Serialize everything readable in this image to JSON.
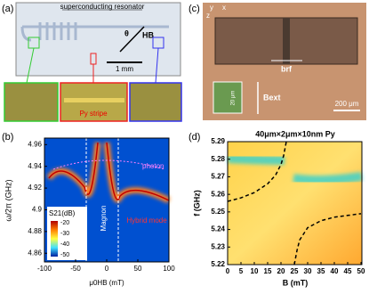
{
  "panel_labels": [
    "(a)",
    "(b)",
    "(c)",
    "(d)"
  ],
  "panel_a": {
    "resonator_label": "superconducting resonator",
    "angle": "θ",
    "field": "HB",
    "scale_bar": "1 mm",
    "stripe_label": "Py stripe"
  },
  "panel_c": {
    "axis_y": "y",
    "axis_x": "x",
    "axis_z": "z",
    "rf_field": "brf",
    "ext_field": "Bext",
    "scale_bar": "200 μm",
    "inset_scale": "20 μm"
  },
  "chart_data": [
    {
      "type": "heatmap",
      "x_label": "μ0HB (mT)",
      "y_label": "ω/2π (GHz)",
      "xlim": [
        -100,
        100
      ],
      "ylim": [
        4.852,
        4.966
      ],
      "xticks": [
        -100,
        -50,
        0,
        50,
        100
      ],
      "yticks": [
        4.86,
        4.88,
        4.9,
        4.92,
        4.94,
        4.96
      ],
      "colorbar_label": "S21(dB)",
      "colorbar_ticks": [
        -20,
        -30,
        -40,
        -50
      ],
      "annotations": [
        "photon",
        "Magnon",
        "Hybrid mode"
      ]
    },
    {
      "type": "line",
      "title": "40μm×2μm×10nm Py",
      "x_label": "B (mT)",
      "y_label": "f (GHz)",
      "xlim": [
        0,
        50
      ],
      "ylim": [
        5.22,
        5.29
      ],
      "xticks": [
        0,
        5,
        10,
        15,
        20,
        25,
        30,
        35,
        40,
        45,
        50
      ],
      "yticks": [
        5.22,
        5.23,
        5.24,
        5.25,
        5.26,
        5.27,
        5.28,
        5.29
      ],
      "series": [
        {
          "color": "#000000",
          "x": [
            0,
            5,
            10,
            15,
            18,
            20,
            21,
            22
          ],
          "values": [
            5.256,
            5.258,
            5.261,
            5.266,
            5.271,
            5.277,
            5.282,
            5.29
          ]
        },
        {
          "color": "#000000",
          "x": [
            25,
            26,
            27,
            30,
            35,
            40,
            45,
            50
          ],
          "values": [
            5.22,
            5.228,
            5.234,
            5.241,
            5.245,
            5.247,
            5.248,
            5.249
          ]
        }
      ]
    }
  ]
}
